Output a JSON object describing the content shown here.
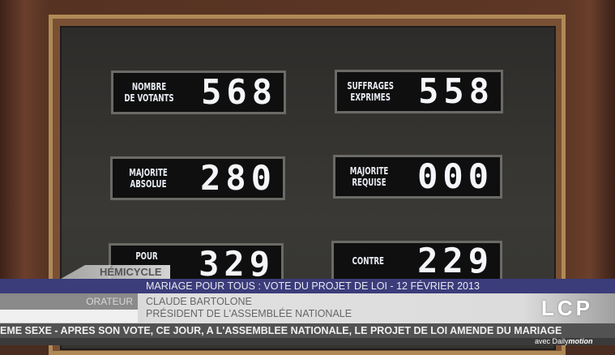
{
  "scoreboard": [
    {
      "label": "NOMBRE\nDE VOTANTS",
      "value": "568"
    },
    {
      "label": "SUFFRAGES\nEXPRIMES",
      "value": "558"
    },
    {
      "label": "MAJORITE\nABSOLUE",
      "value": "280"
    },
    {
      "label": "MAJORITE\nREQUISE",
      "value": "000"
    },
    {
      "label": "POUR",
      "value": "329"
    },
    {
      "label": "CONTRE",
      "value": "229"
    }
  ],
  "overlay": {
    "section": "HÉMICYCLE",
    "headline": "MARIAGE POUR TOUS : VOTE DU PROJET DE LOI - 12 FÉVRIER 2013",
    "role_label": "ORATEUR",
    "speaker_name": "CLAUDE BARTOLONE",
    "speaker_title": "PRÉSIDENT DE L'ASSEMBLÉE NATIONALE",
    "ticker": "EME SEXE   -   APRES SON VOTE, CE JOUR, A L'ASSEMBLEE NATIONALE, LE PROJET DE LOI AMENDE DU MARIAGE"
  },
  "branding": {
    "logo": "LCP",
    "partner_prefix": "avec",
    "partner": "Daily",
    "partner_suffix": "motion"
  }
}
